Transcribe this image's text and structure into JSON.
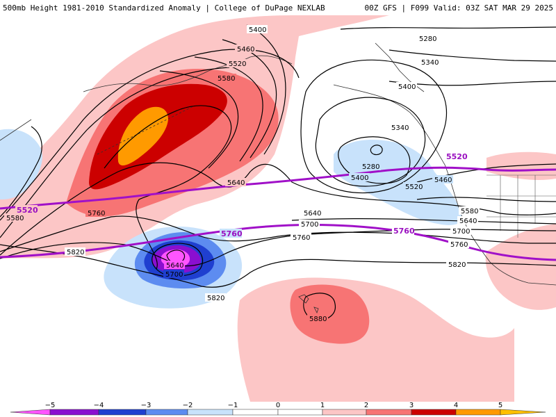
{
  "header": {
    "title_left": "500mb Height 1981-2010 Standardized Anomaly | College of DuPage NEXLAB",
    "title_right": "00Z GFS | F099 Valid: 03Z SAT MAR 29 2025"
  },
  "colors": {
    "plus1": "#fcc6c6",
    "plus2": "#f77474",
    "plus3": "#cc0000",
    "plus4": "#ff9a00",
    "minus1": "#c8e2fb",
    "minus2": "#5d8cf0",
    "minus3": "#1f3fd0",
    "minus4": "#8a0fd0",
    "minus5": "#ff55ff",
    "highlight": "#a010c8"
  },
  "contour_labels": {
    "black": [
      "5400",
      "5460",
      "5520",
      "5580",
      "5280",
      "5340",
      "5400",
      "5340",
      "5280",
      "5400",
      "5520",
      "5460",
      "5580",
      "5640",
      "5700",
      "5760",
      "5640",
      "5700",
      "5760",
      "5820",
      "5580",
      "5760",
      "5820",
      "5640",
      "5700",
      "5820",
      "5880",
      "5640"
    ],
    "purple": [
      "5520",
      "5520",
      "5760",
      "5760"
    ]
  },
  "colorbar": {
    "ticks": [
      "−5",
      "−4",
      "−3",
      "−2",
      "−1",
      "0",
      "1",
      "2",
      "3",
      "4",
      "5"
    ]
  }
}
